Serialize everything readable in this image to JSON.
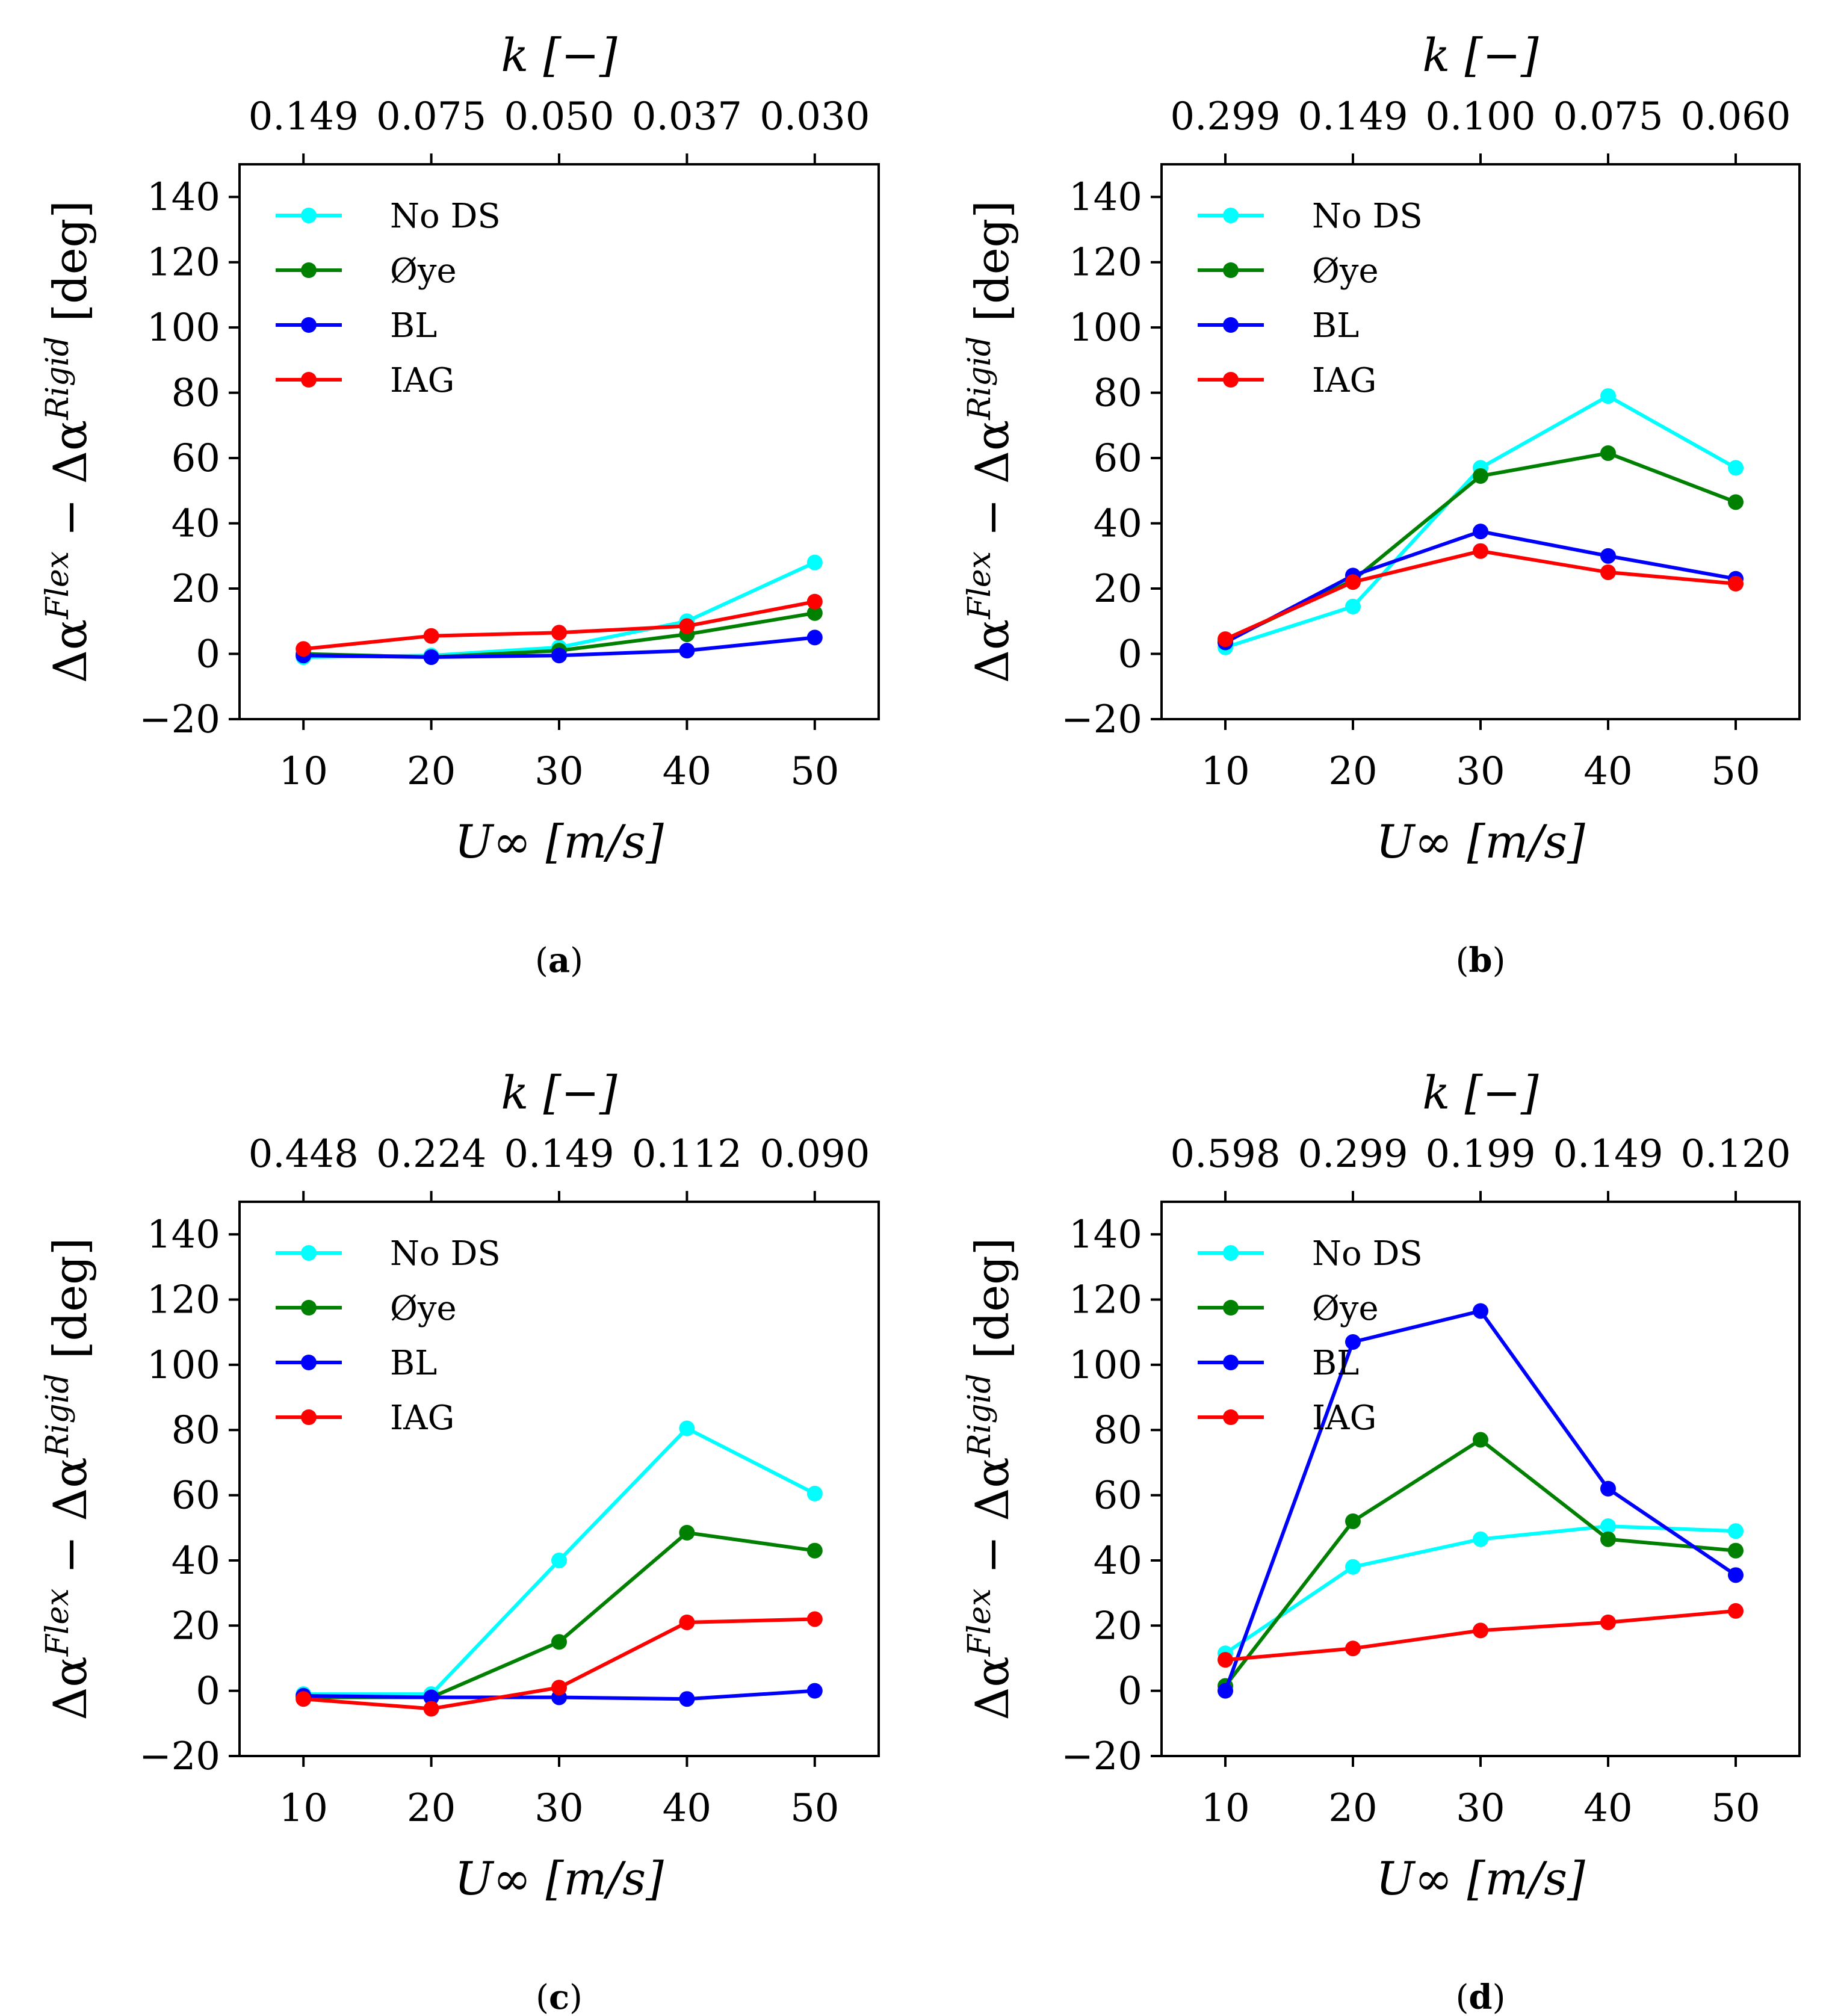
{
  "chart_data": [
    {
      "type": "line",
      "panel_label": "(a)",
      "x": [
        10,
        20,
        30,
        40,
        50
      ],
      "xlim": [
        5,
        55
      ],
      "ylim": [
        -20,
        150
      ],
      "xticks": [
        "10",
        "20",
        "30",
        "40",
        "50"
      ],
      "yticks": [
        "140",
        "120",
        "100",
        "80",
        "60",
        "40",
        "20",
        "0",
        "−20"
      ],
      "ytick_values": [
        140,
        120,
        100,
        80,
        60,
        40,
        20,
        0,
        -20
      ],
      "xlabel": "U∞ [m/s]",
      "ylabel": "Δα^Flex − Δα^Rigid [deg]",
      "top_label": "k [−]",
      "top_ticks": [
        "0.149",
        "0.075",
        "0.050",
        "0.037",
        "0.030"
      ],
      "legend_position": "upper-left",
      "series": [
        {
          "name": "No DS",
          "color": "#00ffff",
          "values": [
            -1,
            -0.5,
            2,
            10,
            28
          ]
        },
        {
          "name": "Øye",
          "color": "#008000",
          "values": [
            0,
            -1,
            1,
            6,
            12.5
          ]
        },
        {
          "name": "BL",
          "color": "#0000ff",
          "values": [
            -0.5,
            -1,
            -0.5,
            1,
            5
          ]
        },
        {
          "name": "IAG",
          "color": "#ff0000",
          "values": [
            1.5,
            5.5,
            6.5,
            8.5,
            16
          ]
        }
      ]
    },
    {
      "type": "line",
      "panel_label": "(b)",
      "x": [
        10,
        20,
        30,
        40,
        50
      ],
      "xlim": [
        5,
        55
      ],
      "ylim": [
        -20,
        150
      ],
      "xticks": [
        "10",
        "20",
        "30",
        "40",
        "50"
      ],
      "yticks": [
        "140",
        "120",
        "100",
        "80",
        "60",
        "40",
        "20",
        "0",
        "−20"
      ],
      "ytick_values": [
        140,
        120,
        100,
        80,
        60,
        40,
        20,
        0,
        -20
      ],
      "xlabel": "U∞ [m/s]",
      "ylabel": "Δα^Flex − Δα^Rigid [deg]",
      "top_label": "k [−]",
      "top_ticks": [
        "0.299",
        "0.149",
        "0.100",
        "0.075",
        "0.060"
      ],
      "legend_position": "upper-left",
      "series": [
        {
          "name": "No DS",
          "color": "#00ffff",
          "values": [
            2,
            14.5,
            57,
            79,
            57
          ]
        },
        {
          "name": "Øye",
          "color": "#008000",
          "values": [
            4,
            22.5,
            54.5,
            61.5,
            46.5
          ]
        },
        {
          "name": "BL",
          "color": "#0000ff",
          "values": [
            3.5,
            24,
            37.5,
            30,
            23
          ]
        },
        {
          "name": "IAG",
          "color": "#ff0000",
          "values": [
            4.5,
            22,
            31.5,
            25,
            21.5
          ]
        }
      ]
    },
    {
      "type": "line",
      "panel_label": "(c)",
      "x": [
        10,
        20,
        30,
        40,
        50
      ],
      "xlim": [
        5,
        55
      ],
      "ylim": [
        -20,
        150
      ],
      "xticks": [
        "10",
        "20",
        "30",
        "40",
        "50"
      ],
      "yticks": [
        "140",
        "120",
        "100",
        "80",
        "60",
        "40",
        "20",
        "0",
        "−20"
      ],
      "ytick_values": [
        140,
        120,
        100,
        80,
        60,
        40,
        20,
        0,
        -20
      ],
      "xlabel": "U∞ [m/s]",
      "ylabel": "Δα^Flex − Δα^Rigid [deg]",
      "top_label": "k [−]",
      "top_ticks": [
        "0.448",
        "0.224",
        "0.149",
        "0.112",
        "0.090"
      ],
      "legend_position": "upper-left",
      "series": [
        {
          "name": "No DS",
          "color": "#00ffff",
          "values": [
            -1,
            -1,
            40,
            80.5,
            60.5
          ]
        },
        {
          "name": "Øye",
          "color": "#008000",
          "values": [
            -2,
            -2,
            15,
            48.5,
            43
          ]
        },
        {
          "name": "BL",
          "color": "#0000ff",
          "values": [
            -1.5,
            -2,
            -2,
            -2.5,
            0
          ]
        },
        {
          "name": "IAG",
          "color": "#ff0000",
          "values": [
            -2.5,
            -5.5,
            1,
            21,
            22
          ]
        }
      ]
    },
    {
      "type": "line",
      "panel_label": "(d)",
      "x": [
        10,
        20,
        30,
        40,
        50
      ],
      "xlim": [
        5,
        55
      ],
      "ylim": [
        -20,
        150
      ],
      "xticks": [
        "10",
        "20",
        "30",
        "40",
        "50"
      ],
      "yticks": [
        "140",
        "120",
        "100",
        "80",
        "60",
        "40",
        "20",
        "0",
        "−20"
      ],
      "ytick_values": [
        140,
        120,
        100,
        80,
        60,
        40,
        20,
        0,
        -20
      ],
      "xlabel": "U∞ [m/s]",
      "ylabel": "Δα^Flex − Δα^Rigid [deg]",
      "top_label": "k [−]",
      "top_ticks": [
        "0.598",
        "0.299",
        "0.199",
        "0.149",
        "0.120"
      ],
      "legend_position": "upper-left",
      "series": [
        {
          "name": "No DS",
          "color": "#00ffff",
          "values": [
            11.5,
            38,
            46.5,
            50.5,
            49
          ]
        },
        {
          "name": "Øye",
          "color": "#008000",
          "values": [
            1.5,
            52,
            77,
            46.5,
            43
          ]
        },
        {
          "name": "BL",
          "color": "#0000ff",
          "values": [
            0,
            107,
            116.5,
            62,
            35.5
          ]
        },
        {
          "name": "IAG",
          "color": "#ff0000",
          "values": [
            9.5,
            13,
            18.5,
            21,
            24.5
          ]
        }
      ]
    }
  ]
}
